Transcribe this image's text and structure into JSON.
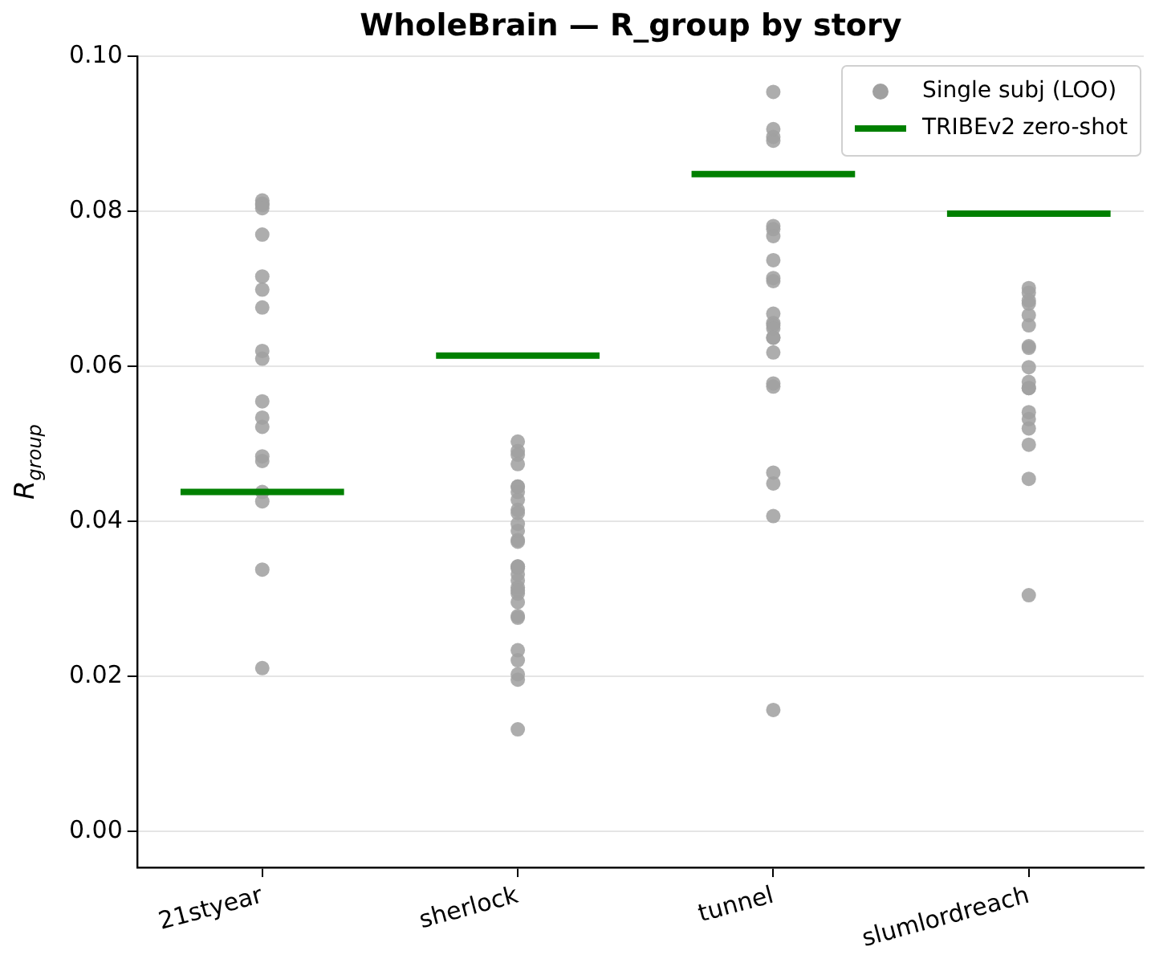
{
  "chart_data": {
    "type": "scatter",
    "title": "WholeBrain — R_group by story",
    "ylabel": "R$_{group}$",
    "categories": [
      "21styear",
      "sherlock",
      "tunnel",
      "slumlordreach"
    ],
    "ylim": [
      -0.0046,
      0.1
    ],
    "yticks": [
      {
        "value": 0,
        "label": "0.00"
      },
      {
        "value": 0.02,
        "label": "0.02"
      },
      {
        "value": 0.04,
        "label": "0.04"
      },
      {
        "value": 0.06,
        "label": "0.06"
      },
      {
        "value": 0.08,
        "label": "0.08"
      },
      {
        "value": 0.1,
        "label": "0.10"
      }
    ],
    "grid": "y",
    "legend": "top right",
    "series": [
      {
        "name": "Single subj (LOO)",
        "marker": "circle",
        "color": "#a0a0a0",
        "x": [
          "21styear",
          "21styear",
          "21styear",
          "21styear",
          "21styear",
          "21styear",
          "21styear",
          "21styear",
          "21styear",
          "21styear",
          "21styear",
          "21styear",
          "21styear",
          "21styear",
          "21styear",
          "21styear",
          "21styear",
          "21styear",
          "21styear",
          "sherlock",
          "sherlock",
          "sherlock",
          "sherlock",
          "sherlock",
          "sherlock",
          "sherlock",
          "sherlock",
          "sherlock",
          "sherlock",
          "sherlock",
          "sherlock",
          "sherlock",
          "sherlock",
          "sherlock",
          "sherlock",
          "sherlock",
          "sherlock",
          "sherlock",
          "sherlock",
          "sherlock",
          "sherlock",
          "sherlock",
          "sherlock",
          "sherlock",
          "sherlock",
          "sherlock",
          "sherlock",
          "sherlock",
          "sherlock",
          "tunnel",
          "tunnel",
          "tunnel",
          "tunnel",
          "tunnel",
          "tunnel",
          "tunnel",
          "tunnel",
          "tunnel",
          "tunnel",
          "tunnel",
          "tunnel",
          "tunnel",
          "tunnel",
          "tunnel",
          "tunnel",
          "tunnel",
          "tunnel",
          "tunnel",
          "tunnel",
          "tunnel",
          "tunnel",
          "tunnel",
          "slumlordreach",
          "slumlordreach",
          "slumlordreach",
          "slumlordreach",
          "slumlordreach",
          "slumlordreach",
          "slumlordreach",
          "slumlordreach",
          "slumlordreach",
          "slumlordreach",
          "slumlordreach",
          "slumlordreach",
          "slumlordreach",
          "slumlordreach",
          "slumlordreach",
          "slumlordreach",
          "slumlordreach",
          "slumlordreach"
        ],
        "values": [
          0.0814,
          0.081,
          0.0804,
          0.0808,
          0.077,
          0.0716,
          0.0699,
          0.0676,
          0.062,
          0.061,
          0.0555,
          0.0534,
          0.0522,
          0.0478,
          0.0484,
          0.0438,
          0.0426,
          0.0338,
          0.0211,
          0.0491,
          0.0503,
          0.0486,
          0.0474,
          0.0438,
          0.0428,
          0.0445,
          0.0445,
          0.0415,
          0.0411,
          0.0388,
          0.0397,
          0.0376,
          0.0374,
          0.0332,
          0.034,
          0.0342,
          0.0342,
          0.0315,
          0.0307,
          0.0296,
          0.0324,
          0.0311,
          0.0276,
          0.0278,
          0.0234,
          0.0221,
          0.0196,
          0.0203,
          0.0132,
          0.0954,
          0.0896,
          0.0891,
          0.0906,
          0.0781,
          0.0777,
          0.0768,
          0.0737,
          0.071,
          0.0714,
          0.0668,
          0.0653,
          0.0637,
          0.0656,
          0.0649,
          0.0637,
          0.0618,
          0.0578,
          0.0574,
          0.0463,
          0.0449,
          0.0407,
          0.0157,
          0.0695,
          0.0701,
          0.0681,
          0.0685,
          0.0666,
          0.0653,
          0.0626,
          0.0624,
          0.0599,
          0.0572,
          0.058,
          0.0572,
          0.0541,
          0.0532,
          0.052,
          0.0499,
          0.0455,
          0.0305
        ]
      }
    ],
    "ref_lines": [
      {
        "axis": "y",
        "value": 0.0438,
        "label": "TRIBEv2 zero-shot",
        "color": "#008000"
      },
      {
        "axis": "y",
        "value": 0.0614,
        "color": "#008000"
      },
      {
        "axis": "y",
        "value": 0.0848,
        "color": "#008000"
      },
      {
        "axis": "y",
        "value": 0.0797,
        "color": "#008000"
      }
    ]
  }
}
